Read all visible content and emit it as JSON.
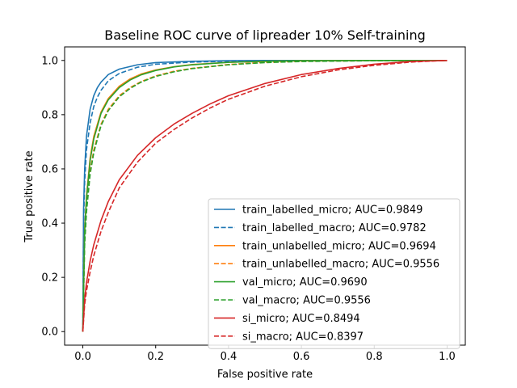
{
  "chart_data": {
    "type": "line",
    "title": "Baseline ROC curve of lipreader 10% Self-training",
    "xlabel": "False positive rate",
    "ylabel": "True positive rate",
    "xlim": [
      -0.05,
      1.05
    ],
    "ylim": [
      -0.05,
      1.05
    ],
    "xticks": [
      0.0,
      0.2,
      0.4,
      0.6,
      0.8,
      1.0
    ],
    "yticks": [
      0.0,
      0.2,
      0.4,
      0.6,
      0.8,
      1.0
    ],
    "xtick_labels": [
      "0.0",
      "0.2",
      "0.4",
      "0.6",
      "0.8",
      "1.0"
    ],
    "ytick_labels": [
      "0.0",
      "0.2",
      "0.4",
      "0.6",
      "0.8",
      "1.0"
    ],
    "grid": false,
    "legend_position": "lower-right",
    "series": [
      {
        "name": "train_labelled_micro; AUC=0.9849",
        "color": "#1f77b4",
        "dash": "solid",
        "x": [
          0,
          0.002,
          0.005,
          0.01,
          0.02,
          0.03,
          0.04,
          0.05,
          0.07,
          0.1,
          0.15,
          0.2,
          0.3,
          0.4,
          0.5,
          0.6,
          0.8,
          1.0
        ],
        "y": [
          0,
          0.45,
          0.6,
          0.72,
          0.82,
          0.87,
          0.9,
          0.92,
          0.948,
          0.968,
          0.984,
          0.992,
          0.997,
          0.999,
          1.0,
          1.0,
          1.0,
          1.0
        ]
      },
      {
        "name": "train_labelled_macro; AUC=0.9782",
        "color": "#1f77b4",
        "dash": "dashed",
        "x": [
          0,
          0.002,
          0.005,
          0.01,
          0.02,
          0.03,
          0.04,
          0.05,
          0.07,
          0.1,
          0.15,
          0.2,
          0.3,
          0.4,
          0.5,
          0.6,
          0.8,
          1.0
        ],
        "y": [
          0,
          0.4,
          0.55,
          0.67,
          0.77,
          0.83,
          0.865,
          0.89,
          0.925,
          0.952,
          0.975,
          0.986,
          0.994,
          0.997,
          0.999,
          1.0,
          1.0,
          1.0
        ]
      },
      {
        "name": "train_unlabelled_micro; AUC=0.9694",
        "color": "#ff7f0e",
        "dash": "solid",
        "x": [
          0,
          0.005,
          0.01,
          0.02,
          0.03,
          0.05,
          0.07,
          0.1,
          0.13,
          0.16,
          0.2,
          0.25,
          0.3,
          0.4,
          0.5,
          0.6,
          0.8,
          1.0
        ],
        "y": [
          0,
          0.38,
          0.5,
          0.64,
          0.72,
          0.81,
          0.86,
          0.905,
          0.932,
          0.95,
          0.965,
          0.977,
          0.985,
          0.993,
          0.997,
          0.999,
          1.0,
          1.0
        ]
      },
      {
        "name": "train_unlabelled_macro; AUC=0.9556",
        "color": "#ff7f0e",
        "dash": "dashed",
        "x": [
          0,
          0.005,
          0.01,
          0.02,
          0.03,
          0.05,
          0.07,
          0.1,
          0.13,
          0.16,
          0.2,
          0.25,
          0.3,
          0.4,
          0.5,
          0.6,
          0.8,
          1.0
        ],
        "y": [
          0,
          0.33,
          0.45,
          0.59,
          0.67,
          0.765,
          0.82,
          0.87,
          0.9,
          0.922,
          0.943,
          0.96,
          0.971,
          0.985,
          0.993,
          0.997,
          0.999,
          1.0
        ]
      },
      {
        "name": "val_micro; AUC=0.9690",
        "color": "#2ca02c",
        "dash": "solid",
        "x": [
          0,
          0.005,
          0.01,
          0.02,
          0.03,
          0.05,
          0.07,
          0.1,
          0.13,
          0.16,
          0.2,
          0.25,
          0.3,
          0.4,
          0.5,
          0.6,
          0.8,
          1.0
        ],
        "y": [
          0,
          0.37,
          0.49,
          0.63,
          0.71,
          0.805,
          0.855,
          0.9,
          0.928,
          0.947,
          0.963,
          0.976,
          0.984,
          0.993,
          0.997,
          0.999,
          1.0,
          1.0
        ]
      },
      {
        "name": "val_macro; AUC=0.9556",
        "color": "#2ca02c",
        "dash": "dashed",
        "x": [
          0,
          0.005,
          0.01,
          0.02,
          0.03,
          0.05,
          0.07,
          0.1,
          0.13,
          0.16,
          0.2,
          0.25,
          0.3,
          0.4,
          0.5,
          0.6,
          0.8,
          1.0
        ],
        "y": [
          0,
          0.32,
          0.44,
          0.58,
          0.66,
          0.76,
          0.815,
          0.866,
          0.897,
          0.92,
          0.941,
          0.958,
          0.97,
          0.984,
          0.992,
          0.996,
          0.999,
          1.0
        ]
      },
      {
        "name": "si_micro; AUC=0.8494",
        "color": "#d62728",
        "dash": "solid",
        "x": [
          0,
          0.005,
          0.01,
          0.02,
          0.03,
          0.05,
          0.07,
          0.1,
          0.15,
          0.2,
          0.25,
          0.3,
          0.35,
          0.4,
          0.5,
          0.6,
          0.7,
          0.8,
          0.9,
          1.0
        ],
        "y": [
          0,
          0.12,
          0.18,
          0.26,
          0.32,
          0.41,
          0.48,
          0.56,
          0.65,
          0.715,
          0.765,
          0.805,
          0.84,
          0.87,
          0.915,
          0.948,
          0.97,
          0.986,
          0.996,
          1.0
        ]
      },
      {
        "name": "si_macro; AUC=0.8397",
        "color": "#d62728",
        "dash": "dashed",
        "x": [
          0,
          0.005,
          0.01,
          0.02,
          0.03,
          0.05,
          0.07,
          0.1,
          0.15,
          0.2,
          0.25,
          0.3,
          0.35,
          0.4,
          0.5,
          0.6,
          0.7,
          0.8,
          0.9,
          1.0
        ],
        "y": [
          0,
          0.1,
          0.15,
          0.22,
          0.28,
          0.37,
          0.44,
          0.53,
          0.625,
          0.695,
          0.745,
          0.788,
          0.825,
          0.857,
          0.905,
          0.94,
          0.965,
          0.982,
          0.994,
          1.0
        ]
      }
    ]
  }
}
